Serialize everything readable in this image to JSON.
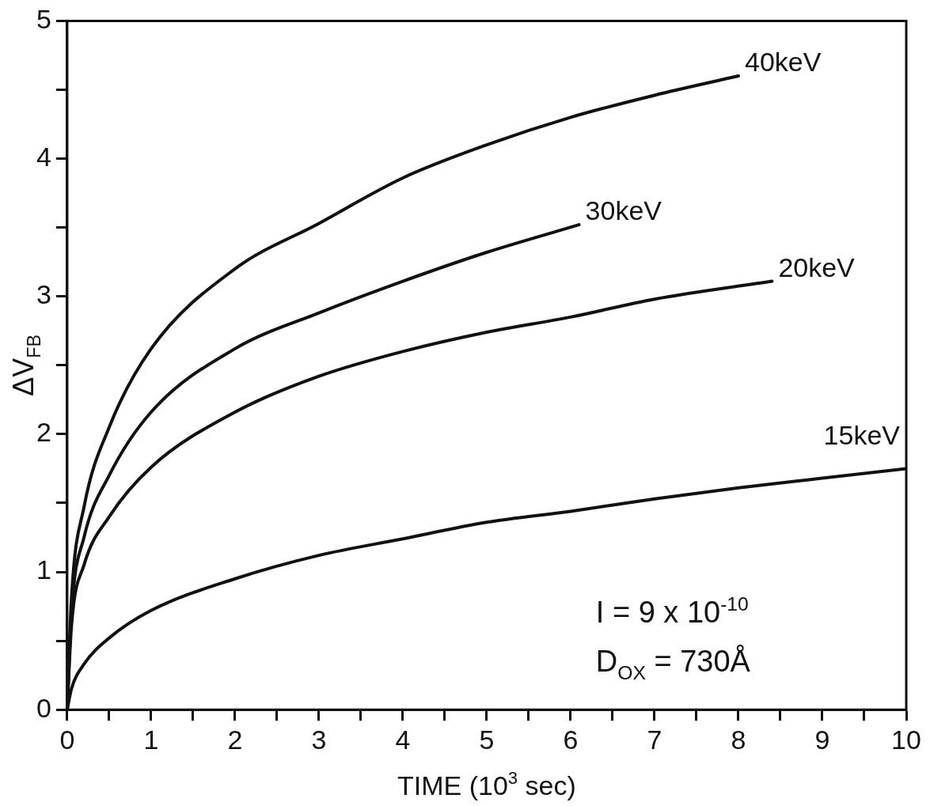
{
  "chart_data": {
    "type": "line",
    "xlabel": "TIME (10$^{3}$ sec)",
    "ylabel": "ΔV$_{FB}$",
    "xlim": [
      0,
      10
    ],
    "ylim": [
      0,
      5
    ],
    "xticks": [
      0,
      {
        "value": 0.5,
        "label": null
      },
      1,
      {
        "value": 1.5,
        "label": null
      },
      2,
      {
        "value": 2.5,
        "label": null
      },
      3,
      {
        "value": 3.5,
        "label": null
      },
      4,
      {
        "value": 4.5,
        "label": null
      },
      5,
      {
        "value": 5.5,
        "label": null
      },
      6,
      {
        "value": 6.5,
        "label": null
      },
      7,
      {
        "value": 7.5,
        "label": null
      },
      8,
      {
        "value": 8.5,
        "label": null
      },
      9,
      {
        "value": 9.5,
        "label": null
      },
      10
    ],
    "yticks": [
      0,
      {
        "value": 0.5,
        "label": null
      },
      1,
      {
        "value": 1.5,
        "label": null
      },
      2,
      {
        "value": 2.5,
        "label": null
      },
      3,
      {
        "value": 3.5,
        "label": null
      },
      4,
      {
        "value": 4.5,
        "label": null
      },
      5
    ],
    "grid": false,
    "legend": false,
    "marker": "none",
    "line_style": "solid",
    "series": [
      {
        "name": "40keV",
        "color": "#111111",
        "x": [
          0,
          0.05,
          0.2,
          0.5,
          1,
          2,
          3,
          4,
          5,
          6,
          7,
          8
        ],
        "values": [
          0,
          0.8,
          1.47,
          2.05,
          2.62,
          3.2,
          3.53,
          3.86,
          4.1,
          4.3,
          4.46,
          4.6
        ]
      },
      {
        "name": "30keV",
        "color": "#111111",
        "x": [
          0,
          0.05,
          0.2,
          0.5,
          1,
          2,
          3,
          4,
          5,
          6.1
        ],
        "values": [
          0,
          0.7,
          1.25,
          1.7,
          2.16,
          2.62,
          2.88,
          3.11,
          3.32,
          3.52
        ]
      },
      {
        "name": "20keV",
        "color": "#111111",
        "x": [
          0,
          0.05,
          0.2,
          0.5,
          1,
          2,
          3,
          4,
          5,
          6,
          7,
          8.4
        ],
        "values": [
          0,
          0.6,
          1.05,
          1.4,
          1.76,
          2.16,
          2.42,
          2.6,
          2.74,
          2.85,
          2.98,
          3.11
        ]
      },
      {
        "name": "15keV",
        "color": "#111111",
        "x": [
          0,
          0.05,
          0.2,
          0.5,
          1,
          2,
          3,
          4,
          5,
          6,
          7,
          8,
          9,
          10
        ],
        "values": [
          0,
          0.15,
          0.33,
          0.52,
          0.72,
          0.95,
          1.12,
          1.24,
          1.36,
          1.44,
          1.53,
          1.61,
          1.68,
          1.75
        ]
      }
    ],
    "annotations": [
      "I = 9 x 10$^{-10}$",
      "D$_{OX}$ = 730Å"
    ]
  }
}
